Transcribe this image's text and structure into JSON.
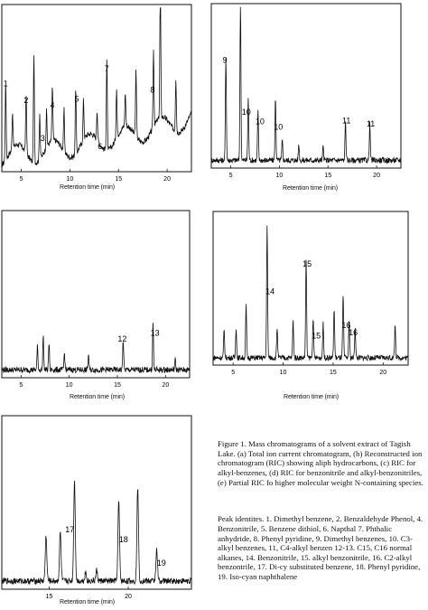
{
  "chart_data": [
    {
      "id": "a",
      "type": "line",
      "xlabel": "Retention time (min)",
      "xlim": [
        3,
        22.5
      ],
      "ticks": [
        {
          "x": 5,
          "label": "5"
        },
        {
          "x": 10,
          "label": "10"
        },
        {
          "x": 15,
          "label": "15"
        },
        {
          "x": 20,
          "label": "20"
        }
      ],
      "peaks": [
        {
          "x": 3.4,
          "h": 0.46
        },
        {
          "x": 4.1,
          "h": 0.22
        },
        {
          "x": 5.5,
          "h": 0.36
        },
        {
          "x": 6.3,
          "h": 0.64
        },
        {
          "x": 6.9,
          "h": 0.28
        },
        {
          "x": 7.6,
          "h": 0.22
        },
        {
          "x": 8.2,
          "h": 0.33
        },
        {
          "x": 9.4,
          "h": 0.25
        },
        {
          "x": 10.6,
          "h": 0.4
        },
        {
          "x": 11.4,
          "h": 0.24
        },
        {
          "x": 12.8,
          "h": 0.18
        },
        {
          "x": 13.8,
          "h": 0.55
        },
        {
          "x": 14.8,
          "h": 0.3
        },
        {
          "x": 15.7,
          "h": 0.2
        },
        {
          "x": 16.8,
          "h": 0.4
        },
        {
          "x": 18.6,
          "h": 0.46
        },
        {
          "x": 19.3,
          "h": 0.8
        },
        {
          "x": 20.9,
          "h": 0.32
        }
      ],
      "labels": [
        {
          "text": "1",
          "x": 3.4
        },
        {
          "text": "2",
          "x": 5.5
        },
        {
          "text": "3",
          "x": 7.2
        },
        {
          "text": "4",
          "x": 8.2
        },
        {
          "text": "5",
          "x": 10.7
        },
        {
          "text": "6",
          "x": 13.1
        },
        {
          "text": "7",
          "x": 13.8
        },
        {
          "text": "8",
          "x": 18.5
        }
      ]
    },
    {
      "id": "b",
      "type": "line",
      "xlabel": "Retention time (min)",
      "xlim": [
        3,
        22.5
      ],
      "ticks": [
        {
          "x": 5,
          "label": "5"
        },
        {
          "x": 10,
          "label": "10"
        },
        {
          "x": 15,
          "label": "15"
        },
        {
          "x": 20,
          "label": "20"
        }
      ],
      "peaks": [
        {
          "x": 4.5,
          "h": 0.64
        },
        {
          "x": 6.0,
          "h": 0.98
        },
        {
          "x": 6.8,
          "h": 0.38
        },
        {
          "x": 7.8,
          "h": 0.3
        },
        {
          "x": 9.6,
          "h": 0.38
        },
        {
          "x": 10.3,
          "h": 0.12
        },
        {
          "x": 12.0,
          "h": 0.1
        },
        {
          "x": 14.5,
          "h": 0.08
        },
        {
          "x": 16.8,
          "h": 0.24
        },
        {
          "x": 19.3,
          "h": 0.22
        }
      ],
      "labels": [
        {
          "text": "9",
          "x": 4.4
        },
        {
          "text": "10",
          "x": 6.6
        },
        {
          "text": "10",
          "x": 8.0
        },
        {
          "text": "10",
          "x": 9.9
        },
        {
          "text": "11",
          "x": 16.9
        },
        {
          "text": "11",
          "x": 19.4
        }
      ]
    },
    {
      "id": "c",
      "type": "line",
      "xlabel": "Retention time (min)",
      "xlim": [
        3,
        22.5
      ],
      "ticks": [
        {
          "x": 5,
          "label": "5"
        },
        {
          "x": 10,
          "label": "10"
        },
        {
          "x": 15,
          "label": "15"
        },
        {
          "x": 20,
          "label": "20"
        }
      ],
      "peaks": [
        {
          "x": 6.7,
          "h": 0.14
        },
        {
          "x": 7.3,
          "h": 0.2
        },
        {
          "x": 7.9,
          "h": 0.16
        },
        {
          "x": 9.5,
          "h": 0.1
        },
        {
          "x": 12.0,
          "h": 0.09
        },
        {
          "x": 15.6,
          "h": 0.18
        },
        {
          "x": 18.7,
          "h": 0.28
        },
        {
          "x": 21.0,
          "h": 0.06
        }
      ],
      "labels": [
        {
          "text": "12",
          "x": 15.5
        },
        {
          "text": "13",
          "x": 18.9
        }
      ]
    },
    {
      "id": "d",
      "type": "line",
      "xlabel": "Retention time (min)",
      "xlim": [
        3,
        22.5
      ],
      "ticks": [
        {
          "x": 5,
          "label": "5"
        },
        {
          "x": 10,
          "label": "10"
        },
        {
          "x": 15,
          "label": "15"
        },
        {
          "x": 20,
          "label": "20"
        }
      ],
      "peaks": [
        {
          "x": 4.1,
          "h": 0.18
        },
        {
          "x": 5.3,
          "h": 0.2
        },
        {
          "x": 6.3,
          "h": 0.34
        },
        {
          "x": 8.4,
          "h": 0.86
        },
        {
          "x": 9.4,
          "h": 0.2
        },
        {
          "x": 11.0,
          "h": 0.24
        },
        {
          "x": 12.3,
          "h": 0.64
        },
        {
          "x": 13.0,
          "h": 0.26
        },
        {
          "x": 14.0,
          "h": 0.22
        },
        {
          "x": 15.1,
          "h": 0.32
        },
        {
          "x": 16.0,
          "h": 0.4
        },
        {
          "x": 16.6,
          "h": 0.24
        },
        {
          "x": 17.2,
          "h": 0.2
        },
        {
          "x": 21.2,
          "h": 0.22
        }
      ],
      "labels": [
        {
          "text": "14",
          "x": 8.7
        },
        {
          "text": "15",
          "x": 12.4
        },
        {
          "text": "15",
          "x": 13.3
        },
        {
          "text": "16",
          "x": 16.3
        },
        {
          "text": "16",
          "x": 17.0
        }
      ]
    },
    {
      "id": "e",
      "type": "line",
      "xlabel": "Retention time (min)",
      "xlim": [
        12,
        24
      ],
      "ticks": [
        {
          "x": 15,
          "label": "15"
        },
        {
          "x": 20,
          "label": "20"
        }
      ],
      "peaks": [
        {
          "x": 14.8,
          "h": 0.26
        },
        {
          "x": 15.7,
          "h": 0.28
        },
        {
          "x": 16.6,
          "h": 0.58
        },
        {
          "x": 17.3,
          "h": 0.05
        },
        {
          "x": 18.0,
          "h": 0.06
        },
        {
          "x": 19.4,
          "h": 0.46
        },
        {
          "x": 20.6,
          "h": 0.54
        },
        {
          "x": 21.8,
          "h": 0.18
        }
      ],
      "labels": [
        {
          "text": "17",
          "x": 16.3
        },
        {
          "text": "18",
          "x": 19.7
        },
        {
          "text": "19",
          "x": 22.1
        }
      ]
    }
  ],
  "caption": {
    "figure": "Figure 1. Mass chromatograms of a solvent extract of Tagish Lake. (a) Total ion current chromatogram, (b) Reconstructed ion chromatogram (RIC) showing aliph hydrocarbons, (c) RIC for alkyl-benzenes, (d) RIC for benzonitrile and alkyl-benzonitriles, (e) Partial RIC fo higher molecular weight N-containing species.",
    "peaks": "Peak identites. 1. Dimethyl benzene, 2. Benzaldehyde Phenol, 4. Benzonitrile, 5. Benzene dithiol, 6. Napthal 7. Phthalic anhydride, 8. Phenyl pyridine, 9. Dimethyl benzenes, 10. C3-alkyl benzenes, 11, C4-alkyl benzen 12-13. C15, C16 normal alkanes, 14. Benzonitrile, 15. alkyl benzonitrile, 16. C2-alkyl benzontrile, 17. Di-cy substituted benzene, 18. Phenyl pyridine, 19. Iso-cyan naphthalene"
  }
}
